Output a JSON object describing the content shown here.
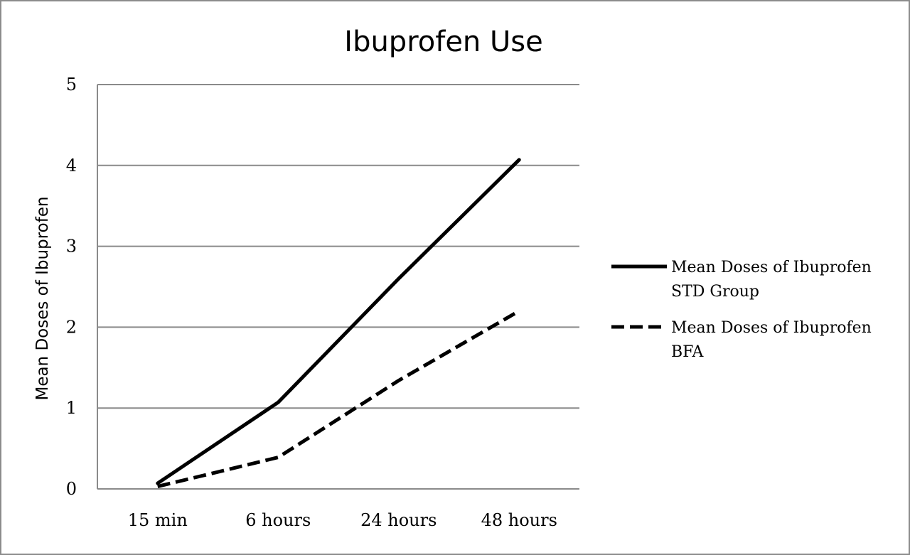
{
  "chart_data": {
    "type": "line",
    "title": "Ibuprofen Use",
    "xlabel": "",
    "ylabel": "Mean Doses of Ibuprofen",
    "categories": [
      "15 min",
      "6 hours",
      "24 hours",
      "48 hours"
    ],
    "yticks": [
      "0",
      "1",
      "2",
      "3",
      "4",
      "5"
    ],
    "ylim": [
      0,
      5
    ],
    "grid": true,
    "legend_position": "right",
    "series": [
      {
        "name_line1": "Mean Doses of Ibuprofen",
        "name_line2": "STD Group",
        "style": "solid",
        "color": "#000000",
        "values": [
          0.07,
          1.07,
          2.6,
          4.07
        ]
      },
      {
        "name_line1": "Mean Doses of Ibuprofen",
        "name_line2": "BFA",
        "style": "dashed",
        "color": "#000000",
        "values": [
          0.03,
          0.39,
          1.34,
          2.2
        ]
      }
    ]
  }
}
